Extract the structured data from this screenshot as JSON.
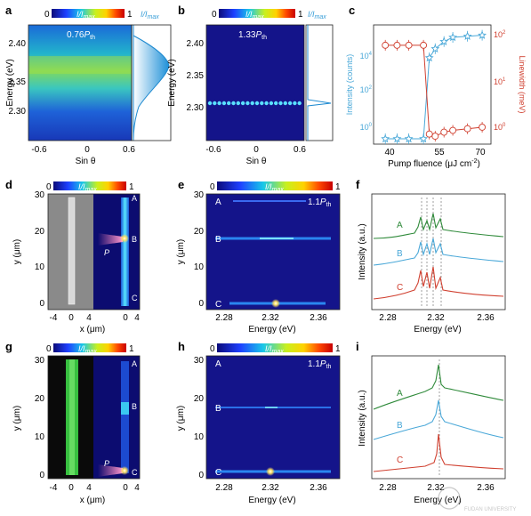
{
  "colors": {
    "blue_series": "#4aa8d8",
    "red_series": "#d04030",
    "green_spec": "#2f8a3a",
    "cmap": [
      "#0b0b7a",
      "#1e40ff",
      "#19c8e8",
      "#c8f01e",
      "#ffd200",
      "#ff4a00",
      "#c80000"
    ]
  },
  "panels": {
    "a": {
      "letter": "a",
      "cbar_min": "0",
      "cbar_max": "1",
      "cbar_label": "I/I",
      "cbar_sub": "max",
      "side_label": "I/I",
      "side_sub": "max",
      "annot": "0.76",
      "annot_sub": "th",
      "annot_italic": "P",
      "ylabel": "Energy (eV)",
      "xlabel": "Sin θ",
      "yticks": [
        "2.40",
        "2.35",
        "2.30"
      ],
      "xticks": [
        "-0.6",
        "0",
        "0.6"
      ]
    },
    "b": {
      "letter": "b",
      "cbar_min": "0",
      "cbar_max": "1",
      "cbar_label": "I/I",
      "cbar_sub": "max",
      "side_label": "I/I",
      "side_sub": "max",
      "annot": "1.33",
      "annot_sub": "th",
      "annot_italic": "P",
      "ylabel": "Energy (eV)",
      "xlabel": "Sin θ",
      "yticks": [
        "2.40",
        "2.35",
        "2.30"
      ],
      "xticks": [
        "-0.6",
        "0",
        "0.6"
      ]
    },
    "c": {
      "letter": "c",
      "xlabel": "Pump fluence (μJ cm",
      "xlabel_sup": "-2",
      "xlabel_end": ")",
      "ylabel_left": "Intensity (counts)",
      "ylabel_right": "Linewidth (meV)",
      "xticks": [
        "40",
        "55",
        "70"
      ],
      "yticks_left": [
        {
          "b": "10",
          "e": "4"
        },
        {
          "b": "10",
          "e": "2"
        },
        {
          "b": "10",
          "e": "0"
        }
      ],
      "yticks_right": [
        {
          "b": "10",
          "e": "2"
        },
        {
          "b": "10",
          "e": "1"
        },
        {
          "b": "10",
          "e": "0"
        }
      ]
    },
    "d": {
      "letter": "d",
      "cbar_min": "0",
      "cbar_max": "1",
      "cbar_label": "I/I",
      "cbar_sub": "max",
      "ylabel": "y (μm)",
      "xlabel": "x (μm)",
      "yticks": [
        "30",
        "20",
        "10",
        "0"
      ],
      "xticks": [
        "-4",
        "0",
        "4",
        "0",
        "4"
      ],
      "site_labels": [
        "A",
        "B",
        "C"
      ],
      "pump_label": "P"
    },
    "e": {
      "letter": "e",
      "cbar_min": "0",
      "cbar_max": "1",
      "cbar_label": "I/I",
      "cbar_sub": "max",
      "annot": "1.1",
      "annot_sub": "th",
      "annot_italic": "P",
      "ylabel": "y (μm)",
      "xlabel": "Energy (eV)",
      "yticks": [
        "30",
        "20",
        "10",
        "0"
      ],
      "xticks": [
        "2.28",
        "2.32",
        "2.36"
      ],
      "site_labels": [
        "A",
        "B",
        "C"
      ]
    },
    "f": {
      "letter": "f",
      "ylabel": "Intensity (a.u.)",
      "xlabel": "Energy (eV)",
      "xticks": [
        "2.28",
        "2.32",
        "2.36"
      ],
      "site_labels": [
        "A",
        "B",
        "C"
      ]
    },
    "g": {
      "letter": "g",
      "cbar_min": "0",
      "cbar_max": "1",
      "cbar_label": "I/I",
      "cbar_sub": "max",
      "ylabel": "y (μm)",
      "xlabel": "x (μm)",
      "yticks": [
        "30",
        "20",
        "10",
        "0"
      ],
      "xticks": [
        "-4",
        "0",
        "4",
        "0",
        "4"
      ],
      "site_labels": [
        "A",
        "B",
        "C"
      ],
      "pump_label": "P"
    },
    "h": {
      "letter": "h",
      "cbar_min": "0",
      "cbar_max": "1",
      "cbar_label": "I/I",
      "cbar_sub": "max",
      "annot": "1.1",
      "annot_sub": "th",
      "annot_italic": "P",
      "ylabel": "y (μm)",
      "xlabel": "Energy (eV)",
      "yticks": [
        "30",
        "20",
        "10",
        "0"
      ],
      "xticks": [
        "2.28",
        "2.32",
        "2.36"
      ],
      "site_labels": [
        "A",
        "B",
        "C"
      ]
    },
    "i": {
      "letter": "i",
      "ylabel": "Intensity (a.u.)",
      "xlabel": "Energy (eV)",
      "xticks": [
        "2.28",
        "2.32",
        "2.36"
      ],
      "site_labels": [
        "A",
        "B",
        "C"
      ]
    }
  },
  "chart_data": [
    {
      "panel": "c",
      "type": "line",
      "xlabel": "Pump fluence (μJ cm-2)",
      "ylabel": "Intensity (counts)",
      "ylabel_right": "Linewidth (meV)",
      "x": [
        38,
        42,
        46,
        51,
        53,
        55,
        58,
        61,
        66,
        71
      ],
      "series": [
        {
          "values": [
            1,
            1,
            1,
            1,
            2500,
            6000,
            12000,
            18000,
            20000,
            22000
          ],
          "axis": "left",
          "scale": "log",
          "range": [
            0.6,
            60000
          ]
        },
        {
          "values": [
            60,
            60,
            60,
            60,
            1.1,
            1.0,
            1.2,
            1.3,
            1.4,
            1.5
          ],
          "axis": "right",
          "scale": "log",
          "range": [
            0.7,
            150
          ]
        }
      ]
    }
  ],
  "watermark": "FUDAN UNIVERSITY"
}
